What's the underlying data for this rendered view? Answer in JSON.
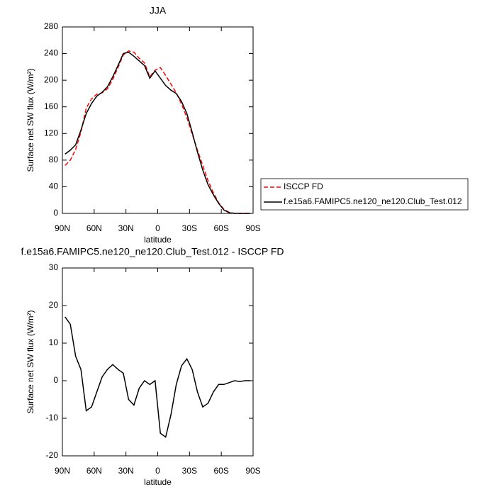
{
  "chart_data": [
    {
      "type": "line",
      "title": "JJA",
      "x_label": "latitude",
      "y_label": "Surface net SW flux (W/m²)",
      "x": [
        87.5,
        82.5,
        77.5,
        72.5,
        67.5,
        62.5,
        57.5,
        52.5,
        47.5,
        42.5,
        37.5,
        32.5,
        27.5,
        22.5,
        17.5,
        12.5,
        7.5,
        2.5,
        -2.5,
        -7.5,
        -12.5,
        -17.5,
        -22.5,
        -27.5,
        -32.5,
        -37.5,
        -42.5,
        -47.5,
        -52.5,
        -57.5,
        -62.5,
        -67.5,
        -72.5,
        -77.5,
        -82.5,
        -87.5
      ],
      "series": [
        {
          "name": "ISCCP FD",
          "color": "#ff0000",
          "dash": "dashed",
          "values": [
            72,
            80,
            96,
            122,
            158,
            172,
            179,
            181,
            187,
            201,
            219,
            238,
            244,
            242,
            233,
            226,
            205,
            215,
            219,
            207,
            194,
            181,
            164,
            144,
            119,
            95,
            72,
            49,
            31,
            16,
            6,
            1.5,
            0,
            0,
            0,
            0
          ]
        },
        {
          "name": "f.e15a6.FAMIPC5.ne120_ne120.Club_Test.012",
          "color": "#000000",
          "dash": "solid",
          "values": [
            89,
            95,
            103,
            125,
            150,
            165,
            176,
            182,
            190,
            205,
            222,
            240,
            242,
            236,
            229,
            222,
            203,
            214,
            203,
            192,
            185,
            180,
            168,
            150,
            122,
            92,
            65,
            43,
            28,
            15,
            5,
            1,
            0,
            0,
            0,
            0
          ]
        }
      ],
      "xlim": [
        90,
        -90
      ],
      "xticks": [
        {
          "value": 90,
          "label": "90N"
        },
        {
          "value": 60,
          "label": "60N"
        },
        {
          "value": 30,
          "label": "30N"
        },
        0,
        {
          "value": -30,
          "label": "30S"
        },
        {
          "value": -60,
          "label": "60S"
        },
        {
          "value": -90,
          "label": "90S"
        }
      ],
      "ylim": [
        0,
        280
      ],
      "yticks": [
        0,
        40,
        80,
        120,
        160,
        200,
        240,
        280
      ],
      "legend": "right"
    },
    {
      "type": "line",
      "title": "f.e15a6.FAMIPC5.ne120_ne120.Club_Test.012 - ISCCP FD",
      "x_label": "latitude",
      "y_label": "Surface net SW flux (W/m²)",
      "x": [
        87.5,
        82.5,
        77.5,
        72.5,
        67.5,
        62.5,
        57.5,
        52.5,
        47.5,
        42.5,
        37.5,
        32.5,
        27.5,
        22.5,
        17.5,
        12.5,
        7.5,
        2.5,
        -2.5,
        -7.5,
        -12.5,
        -17.5,
        -22.5,
        -27.5,
        -32.5,
        -37.5,
        -42.5,
        -47.5,
        -52.5,
        -57.5,
        -62.5,
        -67.5,
        -72.5,
        -77.5,
        -82.5,
        -87.5
      ],
      "series": [
        {
          "color": "#000000",
          "dash": "solid",
          "values": [
            17,
            15,
            6.5,
            3,
            -8,
            -7,
            -3,
            1,
            3,
            4.3,
            3,
            2,
            -5,
            -6.5,
            -2,
            0,
            -1,
            0,
            -14,
            -15,
            -9,
            -1,
            4,
            5.8,
            3,
            -3,
            -7,
            -6,
            -3,
            -1,
            -1,
            -0.5,
            0,
            -0.2,
            0,
            0
          ]
        }
      ],
      "xlim": [
        90,
        -90
      ],
      "xticks": [
        {
          "value": 90,
          "label": "90N"
        },
        {
          "value": 60,
          "label": "60N"
        },
        {
          "value": 30,
          "label": "30N"
        },
        0,
        {
          "value": -30,
          "label": "30S"
        },
        {
          "value": -60,
          "label": "60S"
        },
        {
          "value": -90,
          "label": "90S"
        }
      ],
      "ylim": [
        -20,
        30
      ],
      "yticks": [
        -20,
        -10,
        0,
        10,
        20,
        30
      ]
    }
  ]
}
